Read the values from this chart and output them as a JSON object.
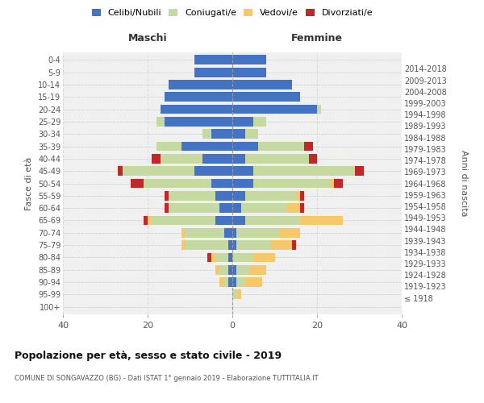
{
  "age_groups": [
    "100+",
    "95-99",
    "90-94",
    "85-89",
    "80-84",
    "75-79",
    "70-74",
    "65-69",
    "60-64",
    "55-59",
    "50-54",
    "45-49",
    "40-44",
    "35-39",
    "30-34",
    "25-29",
    "20-24",
    "15-19",
    "10-14",
    "5-9",
    "0-4"
  ],
  "birth_years": [
    "≤ 1918",
    "1919-1923",
    "1924-1928",
    "1929-1933",
    "1934-1938",
    "1939-1943",
    "1944-1948",
    "1949-1953",
    "1954-1958",
    "1959-1963",
    "1964-1968",
    "1969-1973",
    "1974-1978",
    "1979-1983",
    "1984-1988",
    "1989-1993",
    "1994-1998",
    "1999-2003",
    "2004-2008",
    "2009-2013",
    "2014-2018"
  ],
  "males": {
    "celibi": [
      0,
      0,
      1,
      1,
      1,
      1,
      2,
      4,
      3,
      4,
      5,
      9,
      7,
      12,
      5,
      16,
      17,
      16,
      15,
      9,
      9
    ],
    "coniugati": [
      0,
      0,
      1,
      2,
      3,
      10,
      9,
      15,
      12,
      11,
      16,
      17,
      10,
      6,
      2,
      2,
      0,
      0,
      0,
      0,
      0
    ],
    "vedovi": [
      0,
      0,
      1,
      1,
      1,
      1,
      1,
      1,
      0,
      0,
      0,
      0,
      0,
      0,
      0,
      0,
      0,
      0,
      0,
      0,
      0
    ],
    "divorziati": [
      0,
      0,
      0,
      0,
      1,
      0,
      0,
      1,
      1,
      1,
      3,
      1,
      2,
      0,
      0,
      0,
      0,
      0,
      0,
      0,
      0
    ]
  },
  "females": {
    "nubili": [
      0,
      0,
      1,
      1,
      0,
      1,
      1,
      3,
      2,
      3,
      5,
      5,
      3,
      6,
      3,
      5,
      20,
      16,
      14,
      8,
      8
    ],
    "coniugate": [
      0,
      1,
      2,
      3,
      5,
      8,
      10,
      13,
      11,
      12,
      18,
      24,
      15,
      11,
      3,
      3,
      1,
      0,
      0,
      0,
      0
    ],
    "vedove": [
      0,
      1,
      4,
      4,
      5,
      5,
      5,
      10,
      3,
      1,
      1,
      0,
      0,
      0,
      0,
      0,
      0,
      0,
      0,
      0,
      0
    ],
    "divorziate": [
      0,
      0,
      0,
      0,
      0,
      1,
      0,
      0,
      1,
      1,
      2,
      2,
      2,
      2,
      0,
      0,
      0,
      0,
      0,
      0,
      0
    ]
  },
  "colors": {
    "celibi": "#4472C4",
    "coniugati": "#C5D9A0",
    "vedovi": "#F5C96B",
    "divorziati": "#C0282A"
  },
  "title": "Popolazione per età, sesso e stato civile - 2019",
  "subtitle": "COMUNE DI SONGAVAZZO (BG) - Dati ISTAT 1° gennaio 2019 - Elaborazione TUTTITALIA.IT",
  "ylabel_left": "Fasce di età",
  "ylabel_right": "Anni di nascita",
  "xlabel_maschi": "Maschi",
  "xlabel_femmine": "Femmine",
  "xlim": 40,
  "legend_labels": [
    "Celibi/Nubili",
    "Coniugati/e",
    "Vedovi/e",
    "Divorziati/e"
  ],
  "bg_color": "#f0f0f0"
}
